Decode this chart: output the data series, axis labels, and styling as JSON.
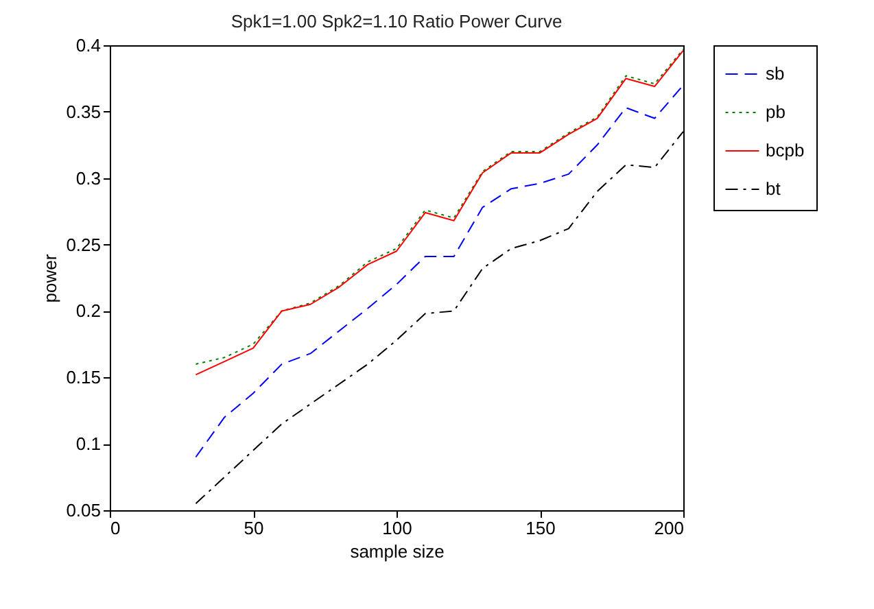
{
  "chart_data": {
    "type": "line",
    "title": "Spk1=1.00 Spk2=1.10 Ratio Power Curve",
    "xlabel": "sample size",
    "ylabel": "power",
    "x": [
      30,
      40,
      50,
      60,
      70,
      80,
      90,
      100,
      110,
      120,
      130,
      140,
      150,
      160,
      170,
      180,
      190,
      200
    ],
    "xlim": [
      0,
      200
    ],
    "xticks": [
      0,
      50,
      100,
      150,
      200
    ],
    "ylim": [
      0.05,
      0.4
    ],
    "yticks": [
      0.05,
      0.1,
      0.15,
      0.2,
      0.25,
      0.3,
      0.35,
      0.4
    ],
    "grid": false,
    "legend": "top right",
    "marker": "none",
    "series": [
      {
        "name": "sb",
        "color": "#0000ff",
        "line_style": "dashed",
        "values": [
          0.09,
          0.12,
          0.138,
          0.16,
          0.168,
          0.185,
          0.202,
          0.22,
          0.241,
          0.241,
          0.278,
          0.292,
          0.296,
          0.303,
          0.325,
          0.353,
          0.345,
          0.37
        ]
      },
      {
        "name": "pb",
        "color": "#008000",
        "line_style": "dotted",
        "values": [
          0.16,
          0.165,
          0.175,
          0.2,
          0.206,
          0.219,
          0.237,
          0.247,
          0.276,
          0.27,
          0.305,
          0.32,
          0.32,
          0.334,
          0.346,
          0.377,
          0.371,
          0.397
        ]
      },
      {
        "name": "bcpb",
        "color": "#ff0000",
        "line_style": "solid",
        "values": [
          0.152,
          0.162,
          0.172,
          0.2,
          0.205,
          0.218,
          0.235,
          0.245,
          0.274,
          0.268,
          0.304,
          0.319,
          0.319,
          0.333,
          0.345,
          0.375,
          0.369,
          0.396
        ]
      },
      {
        "name": "bt",
        "color": "#000000",
        "line_style": "dashdot",
        "values": [
          0.055,
          0.075,
          0.095,
          0.115,
          0.13,
          0.145,
          0.16,
          0.178,
          0.198,
          0.2,
          0.232,
          0.247,
          0.253,
          0.262,
          0.29,
          0.31,
          0.308,
          0.335
        ]
      }
    ]
  }
}
